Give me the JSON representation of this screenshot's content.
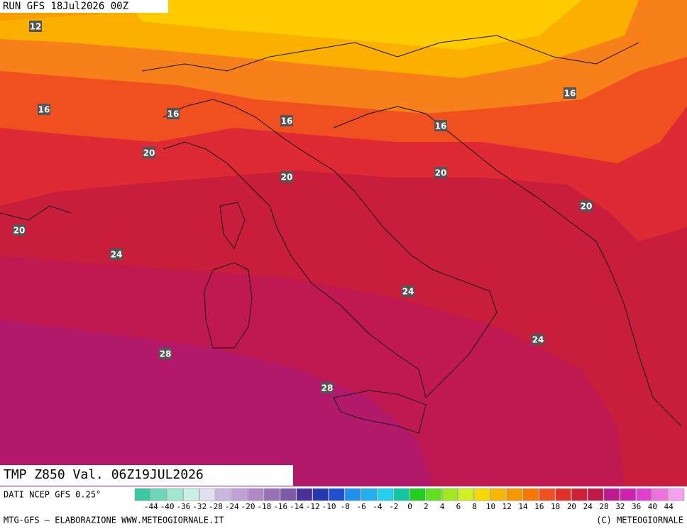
{
  "header": {
    "run": "RUN GFS 18Jul2026 00Z"
  },
  "map": {
    "title": "TMP Z850 Val. 06Z19JUL2026",
    "contour_labels": [
      12,
      16,
      16,
      16,
      16,
      16,
      20,
      20,
      20,
      20,
      20,
      24,
      24,
      24,
      28,
      28
    ]
  },
  "colorbar": {
    "source": "DATI NCEP GFS 0.25°",
    "labels": [
      -44,
      -40,
      -36,
      -32,
      -28,
      -24,
      -20,
      -18,
      -16,
      -14,
      -12,
      -10,
      -8,
      -6,
      -4,
      -2,
      0,
      2,
      4,
      6,
      8,
      10,
      12,
      14,
      16,
      18,
      20,
      24,
      28,
      32,
      36,
      40,
      44
    ]
  },
  "footer": {
    "left": "MTG-GFS — ELABORAZIONE WWW.METEOGIORNALE.IT",
    "right": "(C) METEOGIORNALE"
  }
}
